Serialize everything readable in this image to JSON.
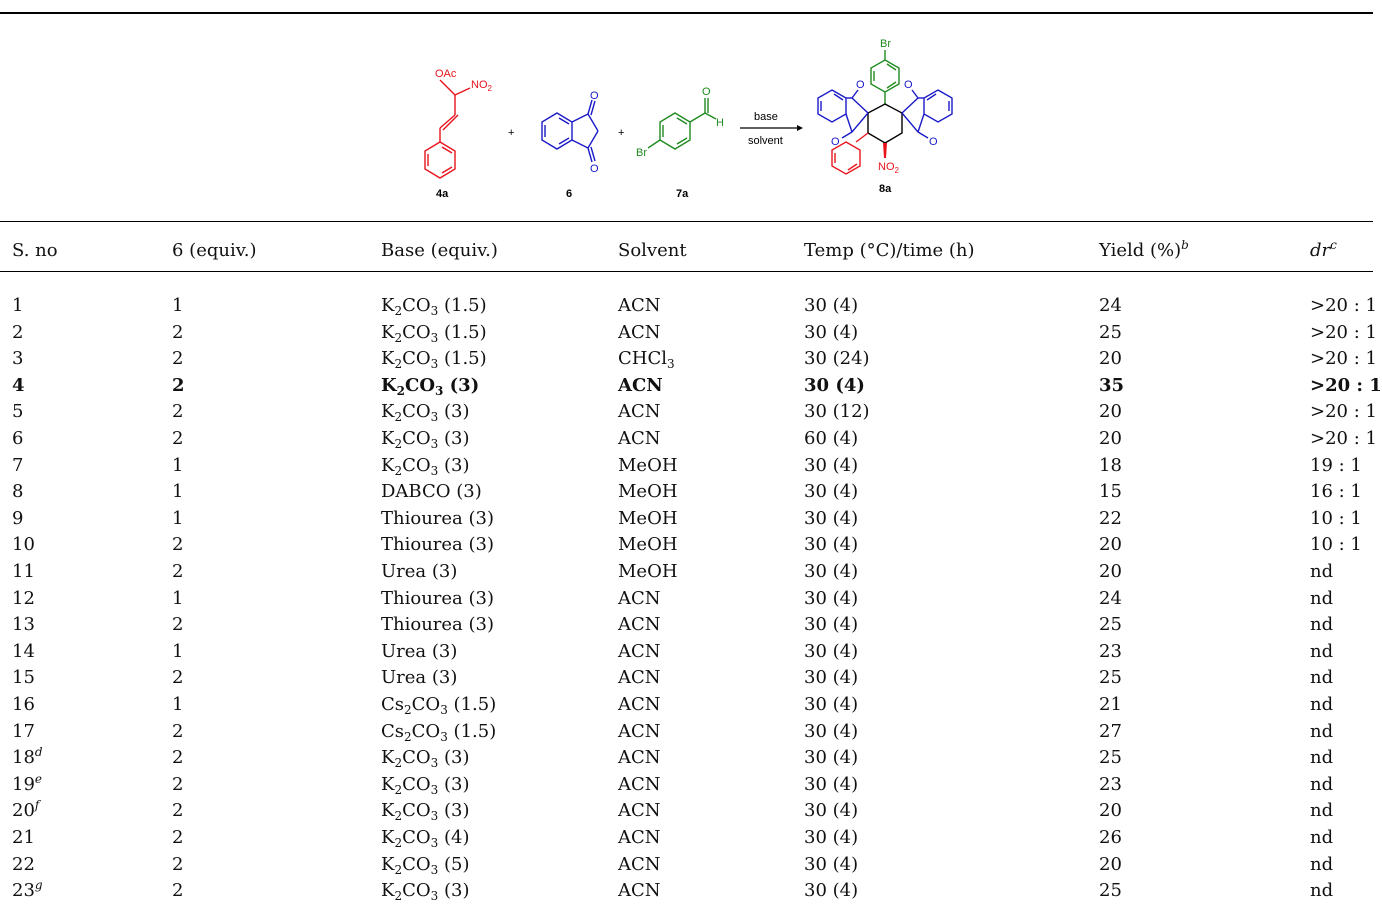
{
  "scheme": {
    "labels": {
      "reactant1": "4a",
      "reactant2": "6",
      "reactant3": "7a",
      "product": "8a"
    },
    "reactant1_groups": {
      "acetate": "OAc",
      "nitro": "NO",
      "nitro_sub": "2"
    },
    "reactant3_groups": {
      "bromo": "Br",
      "oxygen": "O",
      "hydrogen": "H"
    },
    "product_groups": {
      "bromo": "Br",
      "nitro": "NO",
      "nitro_sub": "2",
      "oxygen": "O"
    },
    "plus": "+",
    "arrow_top": "base",
    "arrow_bottom": "solvent",
    "colors": {
      "red": "#e8141c",
      "blue": "#1a1ac8",
      "green": "#1e8a1e",
      "black": "#000000"
    }
  },
  "table": {
    "headers": [
      "S. no",
      "6 (equiv.)",
      "Base (equiv.)",
      "Solvent",
      "Temp (°C)/time (h)",
      "Yield (%)",
      "dr"
    ],
    "header_sups": {
      "yield": "b",
      "dr": "c"
    },
    "rows": [
      {
        "no": "1",
        "sup": "",
        "equiv": "1",
        "base": "K",
        "base_sub1": "2",
        "base_mid": "CO",
        "base_sub2": "3",
        "base_rest": " (1.5)",
        "solvent": "ACN",
        "solvent_sub": "",
        "temp": "30 (4)",
        "yield": "24",
        "dr": ">20 : 1"
      },
      {
        "no": "2",
        "sup": "",
        "equiv": "2",
        "base": "K",
        "base_sub1": "2",
        "base_mid": "CO",
        "base_sub2": "3",
        "base_rest": " (1.5)",
        "solvent": "ACN",
        "solvent_sub": "",
        "temp": "30 (4)",
        "yield": "25",
        "dr": ">20 : 1"
      },
      {
        "no": "3",
        "sup": "",
        "equiv": "2",
        "base": "K",
        "base_sub1": "2",
        "base_mid": "CO",
        "base_sub2": "3",
        "base_rest": " (1.5)",
        "solvent": "CHCl",
        "solvent_sub": "3",
        "temp": "30 (24)",
        "yield": "20",
        "dr": ">20 : 1"
      },
      {
        "no": "4",
        "sup": "",
        "equiv": "2",
        "base": "K",
        "base_sub1": "2",
        "base_mid": "CO",
        "base_sub2": "3",
        "base_rest": " (3)",
        "solvent": "ACN",
        "solvent_sub": "",
        "temp": "30 (4)",
        "yield": "35",
        "dr": ">20 : 1"
      },
      {
        "no": "5",
        "sup": "",
        "equiv": "2",
        "base": "K",
        "base_sub1": "2",
        "base_mid": "CO",
        "base_sub2": "3",
        "base_rest": " (3)",
        "solvent": "ACN",
        "solvent_sub": "",
        "temp": "30 (12)",
        "yield": "20",
        "dr": ">20 : 1"
      },
      {
        "no": "6",
        "sup": "",
        "equiv": "2",
        "base": "K",
        "base_sub1": "2",
        "base_mid": "CO",
        "base_sub2": "3",
        "base_rest": " (3)",
        "solvent": "ACN",
        "solvent_sub": "",
        "temp": "60 (4)",
        "yield": "20",
        "dr": ">20 : 1"
      },
      {
        "no": "7",
        "sup": "",
        "equiv": "1",
        "base": "K",
        "base_sub1": "2",
        "base_mid": "CO",
        "base_sub2": "3",
        "base_rest": " (3)",
        "solvent": "MeOH",
        "solvent_sub": "",
        "temp": "30 (4)",
        "yield": "18",
        "dr": "19 : 1"
      },
      {
        "no": "8",
        "sup": "",
        "equiv": "1",
        "base": "DABCO (3)",
        "base_sub1": "",
        "base_mid": "",
        "base_sub2": "",
        "base_rest": "",
        "solvent": "MeOH",
        "solvent_sub": "",
        "temp": "30 (4)",
        "yield": "15",
        "dr": "16 : 1"
      },
      {
        "no": "9",
        "sup": "",
        "equiv": "1",
        "base": "Thiourea (3)",
        "base_sub1": "",
        "base_mid": "",
        "base_sub2": "",
        "base_rest": "",
        "solvent": "MeOH",
        "solvent_sub": "",
        "temp": "30 (4)",
        "yield": "22",
        "dr": "10 : 1"
      },
      {
        "no": "10",
        "sup": "",
        "equiv": "2",
        "base": "Thiourea (3)",
        "base_sub1": "",
        "base_mid": "",
        "base_sub2": "",
        "base_rest": "",
        "solvent": "MeOH",
        "solvent_sub": "",
        "temp": "30 (4)",
        "yield": "20",
        "dr": "10 : 1"
      },
      {
        "no": "11",
        "sup": "",
        "equiv": "2",
        "base": "Urea (3)",
        "base_sub1": "",
        "base_mid": "",
        "base_sub2": "",
        "base_rest": "",
        "solvent": "MeOH",
        "solvent_sub": "",
        "temp": "30 (4)",
        "yield": "20",
        "dr": "nd"
      },
      {
        "no": "12",
        "sup": "",
        "equiv": "1",
        "base": "Thiourea (3)",
        "base_sub1": "",
        "base_mid": "",
        "base_sub2": "",
        "base_rest": "",
        "solvent": "ACN",
        "solvent_sub": "",
        "temp": "30 (4)",
        "yield": "24",
        "dr": "nd"
      },
      {
        "no": "13",
        "sup": "",
        "equiv": "2",
        "base": "Thiourea (3)",
        "base_sub1": "",
        "base_mid": "",
        "base_sub2": "",
        "base_rest": "",
        "solvent": "ACN",
        "solvent_sub": "",
        "temp": "30 (4)",
        "yield": "25",
        "dr": "nd"
      },
      {
        "no": "14",
        "sup": "",
        "equiv": "1",
        "base": "Urea (3)",
        "base_sub1": "",
        "base_mid": "",
        "base_sub2": "",
        "base_rest": "",
        "solvent": "ACN",
        "solvent_sub": "",
        "temp": "30 (4)",
        "yield": "23",
        "dr": "nd"
      },
      {
        "no": "15",
        "sup": "",
        "equiv": "2",
        "base": "Urea (3)",
        "base_sub1": "",
        "base_mid": "",
        "base_sub2": "",
        "base_rest": "",
        "solvent": "ACN",
        "solvent_sub": "",
        "temp": "30 (4)",
        "yield": "25",
        "dr": "nd"
      },
      {
        "no": "16",
        "sup": "",
        "equiv": "1",
        "base": "Cs",
        "base_sub1": "2",
        "base_mid": "CO",
        "base_sub2": "3",
        "base_rest": " (1.5)",
        "solvent": "ACN",
        "solvent_sub": "",
        "temp": "30 (4)",
        "yield": "21",
        "dr": "nd"
      },
      {
        "no": "17",
        "sup": "",
        "equiv": "2",
        "base": "Cs",
        "base_sub1": "2",
        "base_mid": "CO",
        "base_sub2": "3",
        "base_rest": " (1.5)",
        "solvent": "ACN",
        "solvent_sub": "",
        "temp": "30 (4)",
        "yield": "27",
        "dr": "nd"
      },
      {
        "no": "18",
        "sup": "d",
        "equiv": "2",
        "base": "K",
        "base_sub1": "2",
        "base_mid": "CO",
        "base_sub2": "3",
        "base_rest": " (3)",
        "solvent": "ACN",
        "solvent_sub": "",
        "temp": "30 (4)",
        "yield": "25",
        "dr": "nd"
      },
      {
        "no": "19",
        "sup": "e",
        "equiv": "2",
        "base": "K",
        "base_sub1": "2",
        "base_mid": "CO",
        "base_sub2": "3",
        "base_rest": " (3)",
        "solvent": "ACN",
        "solvent_sub": "",
        "temp": "30 (4)",
        "yield": "23",
        "dr": "nd"
      },
      {
        "no": "20",
        "sup": "f",
        "equiv": "2",
        "base": "K",
        "base_sub1": "2",
        "base_mid": "CO",
        "base_sub2": "3",
        "base_rest": " (3)",
        "solvent": "ACN",
        "solvent_sub": "",
        "temp": "30 (4)",
        "yield": "20",
        "dr": "nd"
      },
      {
        "no": "21",
        "sup": "",
        "equiv": "2",
        "base": "K",
        "base_sub1": "2",
        "base_mid": "CO",
        "base_sub2": "3",
        "base_rest": " (4)",
        "solvent": "ACN",
        "solvent_sub": "",
        "temp": "30 (4)",
        "yield": "26",
        "dr": "nd"
      },
      {
        "no": "22",
        "sup": "",
        "equiv": "2",
        "base": "K",
        "base_sub1": "2",
        "base_mid": "CO",
        "base_sub2": "3",
        "base_rest": " (5)",
        "solvent": "ACN",
        "solvent_sub": "",
        "temp": "30 (4)",
        "yield": "20",
        "dr": "nd"
      },
      {
        "no": "23",
        "sup": "g",
        "equiv": "2",
        "base": "K",
        "base_sub1": "2",
        "base_mid": "CO",
        "base_sub2": "3",
        "base_rest": " (3)",
        "solvent": "ACN",
        "solvent_sub": "",
        "temp": "30 (4)",
        "yield": "25",
        "dr": "nd"
      }
    ],
    "bold_row_index": 3
  }
}
